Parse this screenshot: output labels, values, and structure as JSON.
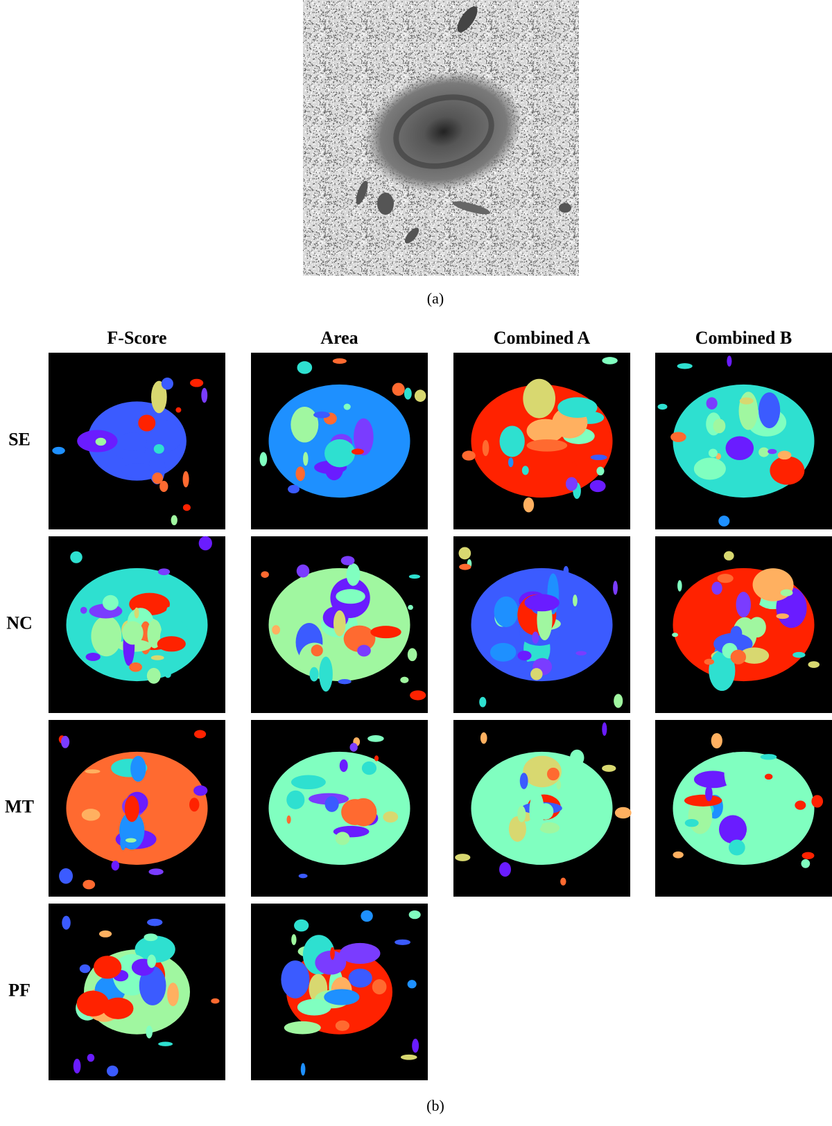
{
  "panel_a": {
    "caption": "(a)"
  },
  "panel_b": {
    "caption": "(b)",
    "columns": [
      "F-Score",
      "Area",
      "Combined A",
      "Combined B"
    ],
    "rows": [
      "SE",
      "NC",
      "MT",
      "PF"
    ]
  }
}
